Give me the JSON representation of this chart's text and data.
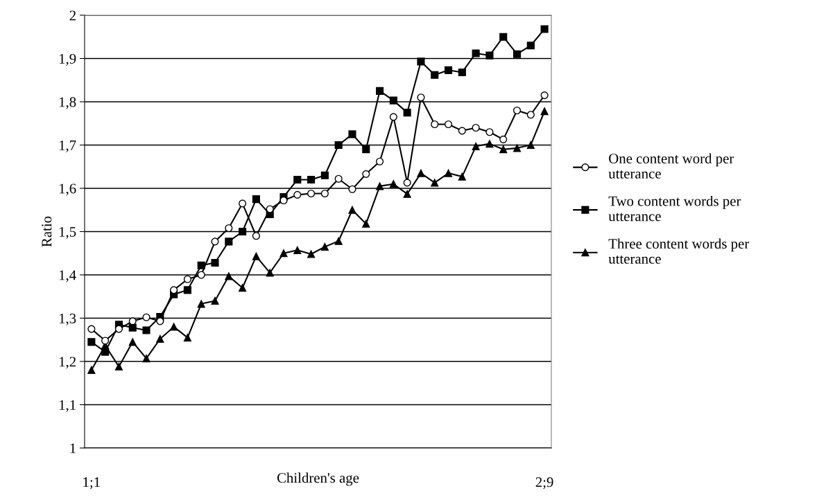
{
  "chart_data": {
    "type": "line",
    "xlabel": "Children's age",
    "ylabel": "Ratio",
    "categories": [
      "1;1",
      null,
      null,
      null,
      null,
      null,
      null,
      null,
      null,
      null,
      null,
      null,
      null,
      null,
      null,
      null,
      null,
      null,
      null,
      null,
      null,
      null,
      null,
      null,
      null,
      null,
      null,
      null,
      null,
      null,
      null,
      null,
      null,
      "2;9"
    ],
    "ylim": [
      1,
      2
    ],
    "yticks": [
      {
        "value": 1,
        "label": "1"
      },
      {
        "value": 1.1,
        "label": "1,1"
      },
      {
        "value": 1.2,
        "label": "1,2"
      },
      {
        "value": 1.3,
        "label": "1,3"
      },
      {
        "value": 1.4,
        "label": "1,4"
      },
      {
        "value": 1.5,
        "label": "1,5"
      },
      {
        "value": 1.6,
        "label": "1,6"
      },
      {
        "value": 1.7,
        "label": "1,7"
      },
      {
        "value": 1.8,
        "label": "1,8"
      },
      {
        "value": 1.9,
        "label": "1,9"
      },
      {
        "value": 2,
        "label": "2"
      }
    ],
    "grid": "y",
    "legend": "right",
    "line_style": "solid",
    "series": [
      {
        "name": "One content word per\nutterance",
        "color": "#000000",
        "marker": "circle",
        "values": [
          1.275,
          1.248,
          1.275,
          1.293,
          1.302,
          1.293,
          1.365,
          1.39,
          1.4,
          1.477,
          1.508,
          1.565,
          1.49,
          1.552,
          1.572,
          1.585,
          1.588,
          1.588,
          1.622,
          1.598,
          1.633,
          1.662,
          1.765,
          1.613,
          1.81,
          1.748,
          1.748,
          1.733,
          1.74,
          1.73,
          1.713,
          1.78,
          1.77,
          1.815
        ]
      },
      {
        "name": "Two content words per\nutterance",
        "color": "#000000",
        "marker": "square",
        "values": [
          1.245,
          1.222,
          1.285,
          1.278,
          1.272,
          1.303,
          1.355,
          1.365,
          1.422,
          1.428,
          1.477,
          1.5,
          1.575,
          1.54,
          1.58,
          1.62,
          1.62,
          1.63,
          1.7,
          1.725,
          1.69,
          1.825,
          1.803,
          1.775,
          1.893,
          1.862,
          1.873,
          1.868,
          1.912,
          1.907,
          1.95,
          1.91,
          1.93,
          1.968
        ]
      },
      {
        "name": "Three content words per\nutterance",
        "color": "#000000",
        "marker": "triangle",
        "values": [
          1.18,
          1.237,
          1.188,
          1.245,
          1.207,
          1.252,
          1.28,
          1.255,
          1.333,
          1.34,
          1.397,
          1.37,
          1.443,
          1.405,
          1.45,
          1.457,
          1.448,
          1.465,
          1.478,
          1.55,
          1.518,
          1.605,
          1.61,
          1.587,
          1.635,
          1.613,
          1.635,
          1.627,
          1.697,
          1.703,
          1.69,
          1.693,
          1.7,
          1.778
        ]
      }
    ]
  }
}
